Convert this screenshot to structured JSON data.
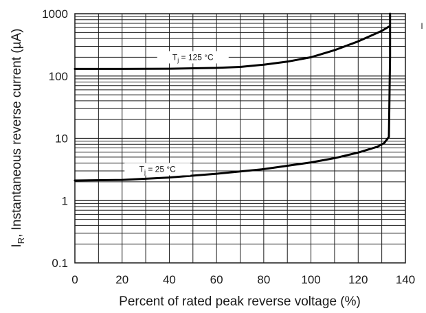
{
  "chart_data": {
    "type": "line",
    "xlabel": "Percent of rated peak reverse voltage (%)",
    "ylabel_main": "I",
    "ylabel_sub": "R",
    "ylabel_rest": ", Instantaneous reverse current (µA)",
    "x_scale": "linear",
    "y_scale": "log",
    "xlim": [
      0,
      140
    ],
    "ylim": [
      0.1,
      1000
    ],
    "x_ticks": [
      "0",
      "20",
      "40",
      "60",
      "80",
      "100",
      "120",
      "140"
    ],
    "y_ticks": [
      "0.1",
      "1",
      "10",
      "100",
      "1000"
    ],
    "grid": true,
    "series": [
      {
        "name_main": "T",
        "name_sub": "j",
        "name_rest": " = 125 °C",
        "x": [
          0,
          20,
          40,
          60,
          70,
          80,
          90,
          100,
          110,
          120,
          130,
          133
        ],
        "y": [
          130,
          130,
          131,
          135,
          140,
          152,
          170,
          200,
          260,
          360,
          530,
          620
        ]
      },
      {
        "name_main": "T",
        "name_sub": "j",
        "name_rest": " = 25 °C",
        "x": [
          0,
          20,
          40,
          60,
          80,
          100,
          110,
          120,
          128,
          131,
          133,
          133.5,
          133.5
        ],
        "y": [
          2.1,
          2.15,
          2.35,
          2.7,
          3.2,
          4.1,
          4.8,
          5.9,
          7.3,
          8.4,
          10.5,
          200,
          1000
        ]
      }
    ],
    "right_edge_text": "I"
  }
}
